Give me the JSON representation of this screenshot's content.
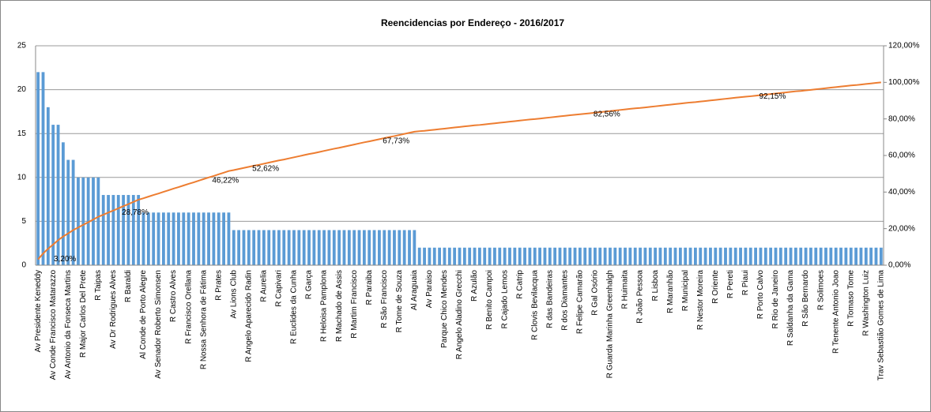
{
  "chart_data": {
    "type": "bar",
    "title": "Reencidencias por Endereço - 2016/2017",
    "categories": [
      "Av Presidente Keneddy",
      null,
      null,
      "Av Conde Francisco Matarazzo",
      null,
      null,
      "Av Antonio da Fonseca Martins",
      null,
      null,
      "R Major Carlos Del Prete",
      null,
      null,
      "R Taipas",
      null,
      null,
      "Av Dr Rodrigues Alves",
      null,
      null,
      "R Baraldi",
      null,
      null,
      "Al Conde de Porto Alegre",
      null,
      null,
      "Av Senador Roberto Simonsen",
      null,
      null,
      "R Castro Alves",
      null,
      null,
      "R Francisco Orellana",
      null,
      null,
      "R Nossa Senhora de Fátima",
      null,
      null,
      "R Prates",
      null,
      null,
      "Av Lions Club",
      null,
      null,
      "R Angelo Aparecido Radin",
      null,
      null,
      "R Aurelia",
      null,
      null,
      "R Capivari",
      null,
      null,
      "R Euclides da Cunha",
      null,
      null,
      "R Garça",
      null,
      null,
      "R Heloisa Pamplona",
      null,
      null,
      "R Machado de Assis",
      null,
      null,
      "R Martim Francisco",
      null,
      null,
      "R Paraiba",
      null,
      null,
      "R São Francisco",
      null,
      null,
      "R Tome de Souza",
      null,
      null,
      "Al Araguaia",
      null,
      null,
      "Av Paraiso",
      null,
      null,
      "Parque Chico Mendes",
      null,
      null,
      "R Angelo Aladino Grecchi",
      null,
      null,
      "R Azulão",
      null,
      null,
      "R Benito Campoi",
      null,
      null,
      "R Cajado Lemos",
      null,
      null,
      "R Catrip",
      null,
      null,
      "R Clovis Bevilacqua",
      null,
      null,
      "R das Bandeiras",
      null,
      null,
      "R dos Diamantes",
      null,
      null,
      "R Felipe Camarão",
      null,
      null,
      "R Gal Osório",
      null,
      null,
      "R Guarda Marinha Greenhalgh",
      null,
      null,
      "R Huimaita",
      null,
      null,
      "R João Pessoa",
      null,
      null,
      "R Lisboa",
      null,
      null,
      "R Maranhão",
      null,
      null,
      "R Municipal",
      null,
      null,
      "R Nestor Moreira",
      null,
      null,
      "R Oriente",
      null,
      null,
      "R Pereti",
      null,
      null,
      "R Piaui",
      null,
      null,
      "R Porto Calvo",
      null,
      null,
      "R Rio de Janeiro",
      null,
      null,
      "R Saldanha da Gama",
      null,
      null,
      "R São Bernardo",
      null,
      null,
      "R Solimoes",
      null,
      null,
      "R Tenente Antonio Joao",
      null,
      null,
      "R Tomaso Tome",
      null,
      null,
      "R Washington Luiz",
      null,
      null,
      "Trav Sebastião Gomes de Lima"
    ],
    "series": [
      {
        "color": "#5b9bd5",
        "values": [
          22,
          22,
          18,
          16,
          16,
          14,
          12,
          12,
          10,
          10,
          10,
          10,
          10,
          8,
          8,
          8,
          8,
          8,
          8,
          8,
          8,
          6,
          6,
          6,
          6,
          6,
          6,
          6,
          6,
          6,
          6,
          6,
          6,
          6,
          6,
          6,
          6,
          6,
          6,
          4,
          4,
          4,
          4,
          4,
          4,
          4,
          4,
          4,
          4,
          4,
          4,
          4,
          4,
          4,
          4,
          4,
          4,
          4,
          4,
          4,
          4,
          4,
          4,
          4,
          4,
          4,
          4,
          4,
          4,
          4,
          4,
          4,
          4,
          4,
          4,
          4,
          2,
          2,
          2,
          2,
          2,
          2,
          2,
          2,
          2,
          2,
          2,
          2,
          2,
          2,
          2,
          2,
          2,
          2,
          2,
          2,
          2,
          2,
          2,
          2,
          2,
          2,
          2,
          2,
          2,
          2,
          2,
          2,
          2,
          2,
          2,
          2,
          2,
          2,
          2,
          2,
          2,
          2,
          2,
          2,
          2,
          2,
          2,
          2,
          2,
          2,
          2,
          2,
          2,
          2,
          2,
          2,
          2,
          2,
          2,
          2,
          2,
          2,
          2,
          2,
          2,
          2,
          2,
          2,
          2,
          2,
          2,
          2,
          2,
          2,
          2,
          2,
          2,
          2,
          2,
          2,
          2,
          2,
          2,
          2,
          2,
          2,
          2,
          2,
          2,
          2,
          2,
          2,
          2
        ]
      },
      {
        "type": "line",
        "axis": "y2",
        "color": "#ed7d31",
        "values": [
          3.2,
          6.4,
          9.0,
          11.3,
          13.7,
          15.7,
          17.4,
          19.2,
          20.6,
          22.1,
          23.5,
          25.0,
          26.5,
          27.6,
          28.78,
          29.9,
          31.1,
          32.3,
          33.4,
          34.6,
          35.8,
          36.6,
          37.5,
          38.4,
          39.2,
          40.1,
          41.0,
          41.9,
          42.7,
          43.6,
          44.5,
          45.3,
          46.22,
          47.1,
          48.0,
          48.8,
          49.7,
          50.6,
          51.5,
          52.0,
          52.62,
          53.2,
          53.8,
          54.4,
          54.9,
          55.5,
          56.1,
          56.7,
          57.3,
          57.8,
          58.4,
          59.0,
          59.6,
          60.2,
          60.8,
          61.3,
          61.9,
          62.5,
          63.1,
          63.7,
          64.2,
          64.8,
          65.4,
          66.0,
          66.6,
          67.2,
          67.73,
          68.3,
          68.9,
          69.5,
          70.1,
          70.6,
          71.2,
          71.8,
          72.4,
          73.0,
          73.3,
          73.5,
          73.8,
          74.1,
          74.4,
          74.7,
          75.0,
          75.3,
          75.6,
          75.9,
          76.2,
          76.5,
          76.7,
          77.0,
          77.3,
          77.6,
          77.9,
          78.2,
          78.5,
          78.8,
          79.1,
          79.4,
          79.7,
          79.9,
          80.2,
          80.5,
          80.8,
          81.1,
          81.4,
          81.7,
          82.0,
          82.3,
          82.56,
          82.8,
          83.1,
          83.4,
          83.7,
          84.0,
          84.3,
          84.6,
          84.9,
          85.2,
          85.5,
          85.8,
          86.0,
          86.3,
          86.6,
          86.9,
          87.2,
          87.5,
          87.8,
          88.1,
          88.4,
          88.7,
          89.0,
          89.2,
          89.5,
          89.8,
          90.1,
          90.4,
          90.7,
          91.0,
          91.3,
          91.6,
          91.9,
          92.15,
          92.4,
          92.7,
          93.0,
          93.3,
          93.6,
          93.9,
          94.2,
          94.5,
          94.8,
          95.1,
          95.3,
          95.6,
          95.9,
          96.2,
          96.5,
          96.8,
          97.1,
          97.4,
          97.7,
          98.0,
          98.3,
          98.5,
          98.8,
          99.1,
          99.4,
          99.7,
          100
        ],
        "value_labels": [
          "3,20%",
          null,
          null,
          null,
          null,
          null,
          null,
          null,
          null,
          null,
          null,
          null,
          null,
          null,
          "28,78%",
          null,
          null,
          null,
          null,
          null,
          null,
          null,
          null,
          null,
          null,
          null,
          null,
          null,
          null,
          null,
          null,
          null,
          "46,22%",
          null,
          null,
          null,
          null,
          null,
          null,
          null,
          "52,62%",
          null,
          null,
          null,
          null,
          null,
          null,
          null,
          null,
          null,
          null,
          null,
          null,
          null,
          null,
          null,
          null,
          null,
          null,
          null,
          null,
          null,
          null,
          null,
          null,
          null,
          "67,73%",
          null,
          null,
          null,
          null,
          null,
          null,
          null,
          null,
          null,
          null,
          null,
          null,
          null,
          null,
          null,
          null,
          null,
          null,
          null,
          null,
          null,
          null,
          null,
          null,
          null,
          null,
          null,
          null,
          null,
          null,
          null,
          null,
          null,
          null,
          null,
          null,
          null,
          null,
          null,
          null,
          null,
          "82,56%",
          null,
          null,
          null,
          null,
          null,
          null,
          null,
          null,
          null,
          null,
          null,
          null,
          null,
          null,
          null,
          null,
          null,
          null,
          null,
          null,
          null,
          null,
          null,
          null,
          null,
          null,
          null,
          null,
          null,
          null,
          null,
          null,
          "92,15%",
          null,
          null,
          null,
          null,
          null,
          null,
          null,
          null,
          null,
          null,
          null,
          null,
          null,
          null,
          null,
          null,
          null,
          null,
          null,
          null,
          null,
          null,
          null,
          null,
          null,
          null,
          null
        ]
      }
    ],
    "ylim": [
      0,
      25
    ],
    "yticks": [
      0,
      5,
      10,
      15,
      20,
      25
    ],
    "y2lim": [
      0,
      120
    ],
    "y2ticks": [
      {
        "value": 0,
        "label": "0,00%"
      },
      {
        "value": 20,
        "label": "20,00%"
      },
      {
        "value": 40,
        "label": "40,00%"
      },
      {
        "value": 60,
        "label": "60,00%"
      },
      {
        "value": 80,
        "label": "80,00%"
      },
      {
        "value": 100,
        "label": "100,00%"
      },
      {
        "value": 120,
        "label": "120,00%"
      }
    ],
    "grid": true
  }
}
